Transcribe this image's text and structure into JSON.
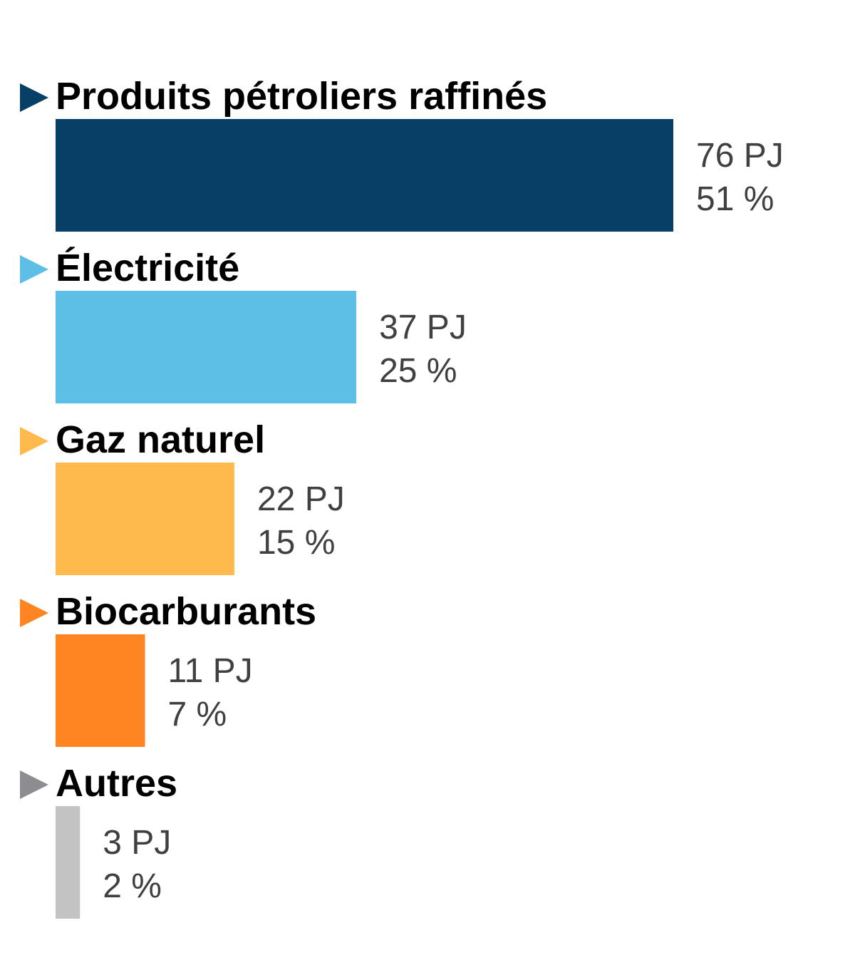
{
  "chart_data": {
    "type": "bar",
    "orientation": "horizontal",
    "categories": [
      "Produits pétroliers raffinés",
      "Électricité",
      "Gaz naturel",
      "Biocarburants",
      "Autres"
    ],
    "values": [
      76,
      37,
      22,
      11,
      3
    ],
    "value_labels": [
      "76 PJ",
      "37 PJ",
      "22 PJ",
      "11 PJ",
      "3 PJ"
    ],
    "percent_labels": [
      "51 %",
      "25 %",
      "15 %",
      "7 %",
      "2 %"
    ],
    "unit": "PJ",
    "colors": [
      "#083f66",
      "#5ebfe6",
      "#ffba4d",
      "#ff8522",
      "#c3c3c3"
    ],
    "marker_colors": [
      "#083f66",
      "#5ebfe6",
      "#ffba4d",
      "#ff8522",
      "#8b8d91"
    ],
    "marker_icon": "triangle-right-icon",
    "legend": "none",
    "grid": false,
    "axes_visible": false
  }
}
